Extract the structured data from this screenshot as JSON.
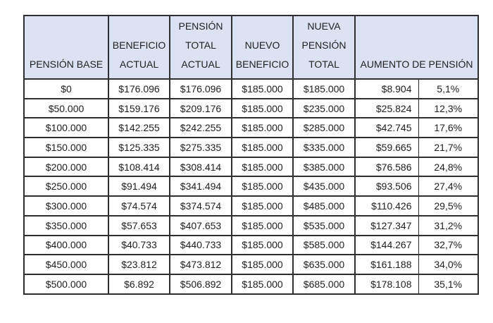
{
  "colors": {
    "header_bg": "#dbe2f1",
    "border_color": "#2f2f2f",
    "text_color": "#212121",
    "row_bg": "#ffffff",
    "page_bg": "#ffffff"
  },
  "chart_data": {
    "type": "table",
    "title": "",
    "column_ids": [
      "pension-base",
      "beneficio-actual",
      "pension-total-actual",
      "nuevo-beneficio",
      "nueva-pension-total",
      "aumento-monto",
      "aumento-porcentaje"
    ],
    "header_labels": [
      "PENSIÓN BASE",
      "BENEFICIO\nACTUAL",
      "PENSIÓN\nTOTAL\nACTUAL",
      "NUEVO\nBENEFICIO",
      "NUEVA\nPENSIÓN\nTOTAL",
      "AUMENTO DE PENSIÓN"
    ],
    "merged_header": {
      "label": "AUMENTO DE PENSIÓN",
      "spans": [
        "aumento-monto",
        "aumento-porcentaje"
      ]
    },
    "rows": [
      [
        "$0",
        "$176.096",
        "$176.096",
        "$185.000",
        "$185.000",
        "$8.904",
        "5,1%"
      ],
      [
        "$50.000",
        "$159.176",
        "$209.176",
        "$185.000",
        "$235.000",
        "$25.824",
        "12,3%"
      ],
      [
        "$100.000",
        "$142.255",
        "$242.255",
        "$185.000",
        "$285.000",
        "$42.745",
        "17,6%"
      ],
      [
        "$150.000",
        "$125.335",
        "$275.335",
        "$185.000",
        "$335.000",
        "$59.665",
        "21,7%"
      ],
      [
        "$200.000",
        "$108.414",
        "$308.414",
        "$185.000",
        "$385.000",
        "$76.586",
        "24,8%"
      ],
      [
        "$250.000",
        "$91.494",
        "$341.494",
        "$185.000",
        "$435.000",
        "$93.506",
        "27,4%"
      ],
      [
        "$300.000",
        "$74.574",
        "$374.574",
        "$185.000",
        "$485.000",
        "$110.426",
        "29,5%"
      ],
      [
        "$350.000",
        "$57.653",
        "$407.653",
        "$185.000",
        "$535.000",
        "$127.347",
        "31,2%"
      ],
      [
        "$400.000",
        "$40.733",
        "$440.733",
        "$185.000",
        "$585.000",
        "$144.267",
        "32,7%"
      ],
      [
        "$450.000",
        "$23.812",
        "$473.812",
        "$185.000",
        "$635.000",
        "$161.188",
        "34,0%"
      ],
      [
        "$500.000",
        "$6.892",
        "$506.892",
        "$185.000",
        "$685.000",
        "$178.108",
        "35,1%"
      ]
    ]
  }
}
